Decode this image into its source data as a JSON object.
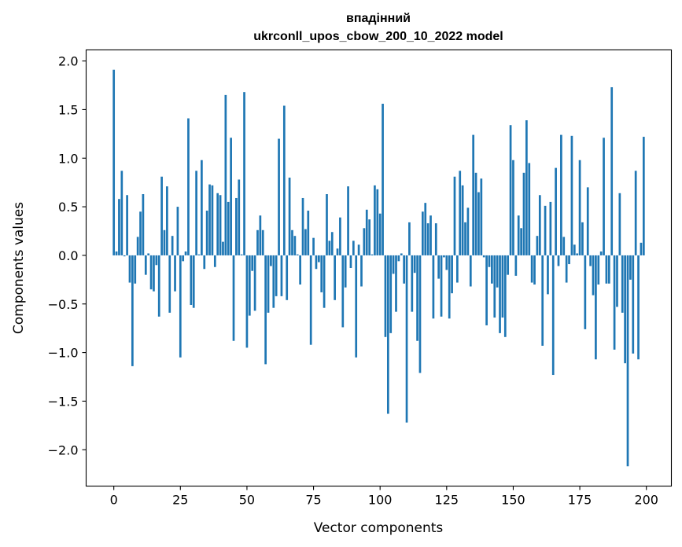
{
  "chart_data": {
    "type": "bar",
    "title": [
      "впадінний",
      "ukrconll_upos_cbow_200_10_2022 model"
    ],
    "xlabel": "Vector components",
    "ylabel": "Components values",
    "xlim": [
      -10.39,
      209.39
    ],
    "ylim": [
      -2.374,
      2.114
    ],
    "xticks": [
      0,
      25,
      50,
      75,
      100,
      125,
      150,
      175,
      200
    ],
    "xtick_labels": [
      "0",
      "25",
      "50",
      "75",
      "100",
      "125",
      "150",
      "175",
      "200"
    ],
    "yticks": [
      2.0,
      1.5,
      1.0,
      0.5,
      0.0,
      -0.5,
      -1.0,
      -1.5,
      -2.0
    ],
    "ytick_labels": [
      "2.0",
      "1.5",
      "1.0",
      "0.5",
      "0.0",
      "−0.5",
      "−1.0",
      "−1.5",
      "−2.0"
    ],
    "grid": false,
    "bar_color": "#1f77b4",
    "values": [
      1.91,
      0.04,
      0.58,
      0.87,
      -0.01,
      0.62,
      -0.28,
      -1.14,
      -0.29,
      0.19,
      0.45,
      0.63,
      -0.2,
      0.02,
      -0.35,
      -0.37,
      -0.1,
      -0.63,
      0.81,
      0.26,
      0.71,
      -0.59,
      0.2,
      -0.37,
      0.5,
      -1.05,
      -0.06,
      0.04,
      1.41,
      -0.51,
      -0.54,
      0.87,
      0.01,
      0.98,
      -0.14,
      0.46,
      0.73,
      0.72,
      -0.12,
      0.64,
      0.62,
      0.14,
      1.65,
      0.55,
      1.21,
      -0.88,
      0.59,
      0.78,
      0.01,
      1.68,
      -0.95,
      -0.62,
      -0.16,
      -0.57,
      0.26,
      0.41,
      0.26,
      -1.12,
      -0.59,
      -0.11,
      -0.54,
      -0.42,
      1.2,
      -0.42,
      1.54,
      -0.46,
      0.8,
      0.26,
      0.2,
      0.01,
      -0.3,
      0.59,
      0.27,
      0.46,
      -0.92,
      0.18,
      -0.14,
      -0.07,
      -0.38,
      -0.54,
      0.63,
      0.15,
      0.24,
      -0.46,
      0.07,
      0.39,
      -0.74,
      -0.33,
      0.71,
      -0.13,
      0.15,
      -1.05,
      0.11,
      -0.32,
      0.28,
      0.47,
      0.37,
      0.01,
      0.72,
      0.68,
      0.43,
      1.56,
      -0.84,
      -1.63,
      -0.8,
      -0.19,
      -0.58,
      -0.06,
      0.02,
      -0.29,
      -1.72,
      0.34,
      -0.58,
      -0.18,
      -0.88,
      -1.21,
      0.45,
      0.54,
      0.33,
      0.41,
      -0.65,
      0.33,
      -0.24,
      -0.63,
      -0.02,
      -0.15,
      -0.65,
      -0.39,
      0.81,
      -0.28,
      0.87,
      0.72,
      0.34,
      0.49,
      -0.32,
      1.24,
      0.85,
      0.65,
      0.79,
      -0.02,
      -0.72,
      -0.12,
      -0.29,
      -0.64,
      -0.33,
      -0.8,
      -0.64,
      -0.84,
      -0.2,
      1.34,
      0.98,
      -0.21,
      0.41,
      0.28,
      0.85,
      1.39,
      0.95,
      -0.28,
      -0.3,
      0.2,
      0.62,
      -0.93,
      0.51,
      -0.4,
      0.55,
      -1.23,
      0.9,
      -0.11,
      1.24,
      0.19,
      -0.28,
      -0.09,
      1.23,
      0.11,
      0.02,
      0.98,
      0.34,
      -0.76,
      0.7,
      -0.11,
      -0.41,
      -1.07,
      -0.3,
      0.04,
      1.21,
      -0.29,
      -0.29,
      1.73,
      -0.97,
      -0.53,
      0.64,
      -0.59,
      -1.11,
      -2.17,
      -0.25,
      -1.01,
      0.87,
      -1.07,
      0.13,
      1.22
    ]
  }
}
